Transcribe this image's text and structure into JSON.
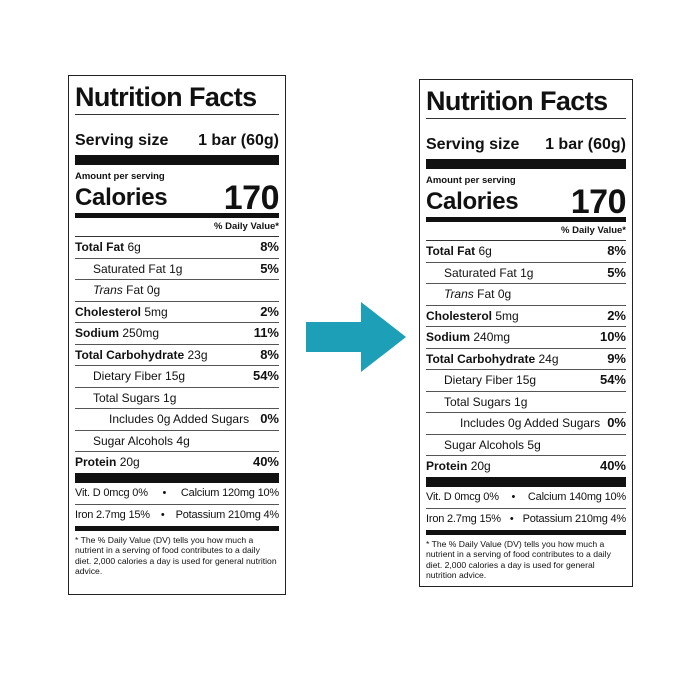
{
  "labels": [
    {
      "title": "Nutrition Facts",
      "serving_label": "Serving size",
      "serving_value": "1 bar (60g)",
      "amount_per_serving": "Amount per serving",
      "calories_label": "Calories",
      "calories_value": "170",
      "dv_header": "% Daily Value*",
      "rows": [
        {
          "name": "Total Fat",
          "amount": "6g",
          "dv": "8%"
        },
        {
          "name": "Saturated Fat",
          "amount": "1g",
          "dv": "5%"
        },
        {
          "name": "Trans",
          "amount": "Fat 0g",
          "dv": ""
        },
        {
          "name": "Cholesterol",
          "amount": "5mg",
          "dv": "2%"
        },
        {
          "name": "Sodium",
          "amount": "250mg",
          "dv": "11%"
        },
        {
          "name": "Total Carbohydrate",
          "amount": "23g",
          "dv": "8%"
        },
        {
          "name": "Dietary Fiber",
          "amount": "15g",
          "dv": "54%"
        },
        {
          "name": "Total Sugars",
          "amount": "1g",
          "dv": ""
        },
        {
          "name": "Includes 0g Added Sugars",
          "amount": "",
          "dv": "0%"
        },
        {
          "name": "Sugar Alcohols",
          "amount": "4g",
          "dv": ""
        },
        {
          "name": "Protein",
          "amount": "20g",
          "dv": "40%"
        }
      ],
      "vitamins": {
        "vit_d": "Vit. D 0mcg 0%",
        "calcium": "Calcium 120mg 10%",
        "iron": "Iron 2.7mg 15%",
        "potassium": "Potassium 210mg 4%",
        "separator": "•"
      },
      "footnote": "* The % Daily Value (DV) tells you how much a nutrient in a serving of food contributes to a daily diet. 2,000 calories a day is used for general nutrition advice."
    },
    {
      "title": "Nutrition Facts",
      "serving_label": "Serving size",
      "serving_value": "1 bar (60g)",
      "amount_per_serving": "Amount per serving",
      "calories_label": "Calories",
      "calories_value": "170",
      "dv_header": "% Daily Value*",
      "rows": [
        {
          "name": "Total Fat",
          "amount": "6g",
          "dv": "8%"
        },
        {
          "name": "Saturated Fat",
          "amount": "1g",
          "dv": "5%"
        },
        {
          "name": "Trans",
          "amount": "Fat 0g",
          "dv": ""
        },
        {
          "name": "Cholesterol",
          "amount": "5mg",
          "dv": "2%"
        },
        {
          "name": "Sodium",
          "amount": "240mg",
          "dv": "10%"
        },
        {
          "name": "Total Carbohydrate",
          "amount": "24g",
          "dv": "9%"
        },
        {
          "name": "Dietary Fiber",
          "amount": "15g",
          "dv": "54%"
        },
        {
          "name": "Total Sugars",
          "amount": "1g",
          "dv": ""
        },
        {
          "name": "Includes 0g Added Sugars",
          "amount": "",
          "dv": "0%"
        },
        {
          "name": "Sugar Alcohols",
          "amount": "5g",
          "dv": ""
        },
        {
          "name": "Protein",
          "amount": "20g",
          "dv": "40%"
        }
      ],
      "vitamins": {
        "vit_d": "Vit. D 0mcg 0%",
        "calcium": "Calcium 140mg 10%",
        "iron": "Iron 2.7mg 15%",
        "potassium": "Potassium 210mg 4%",
        "separator": "•"
      },
      "footnote": "* The % Daily Value (DV) tells you how much a nutrient in a serving of food contributes to a daily diet. 2,000 calories a day is used for general nutrition advice."
    }
  ],
  "arrow": {
    "icon": "right-arrow-icon",
    "color": "#1d9fb8"
  }
}
